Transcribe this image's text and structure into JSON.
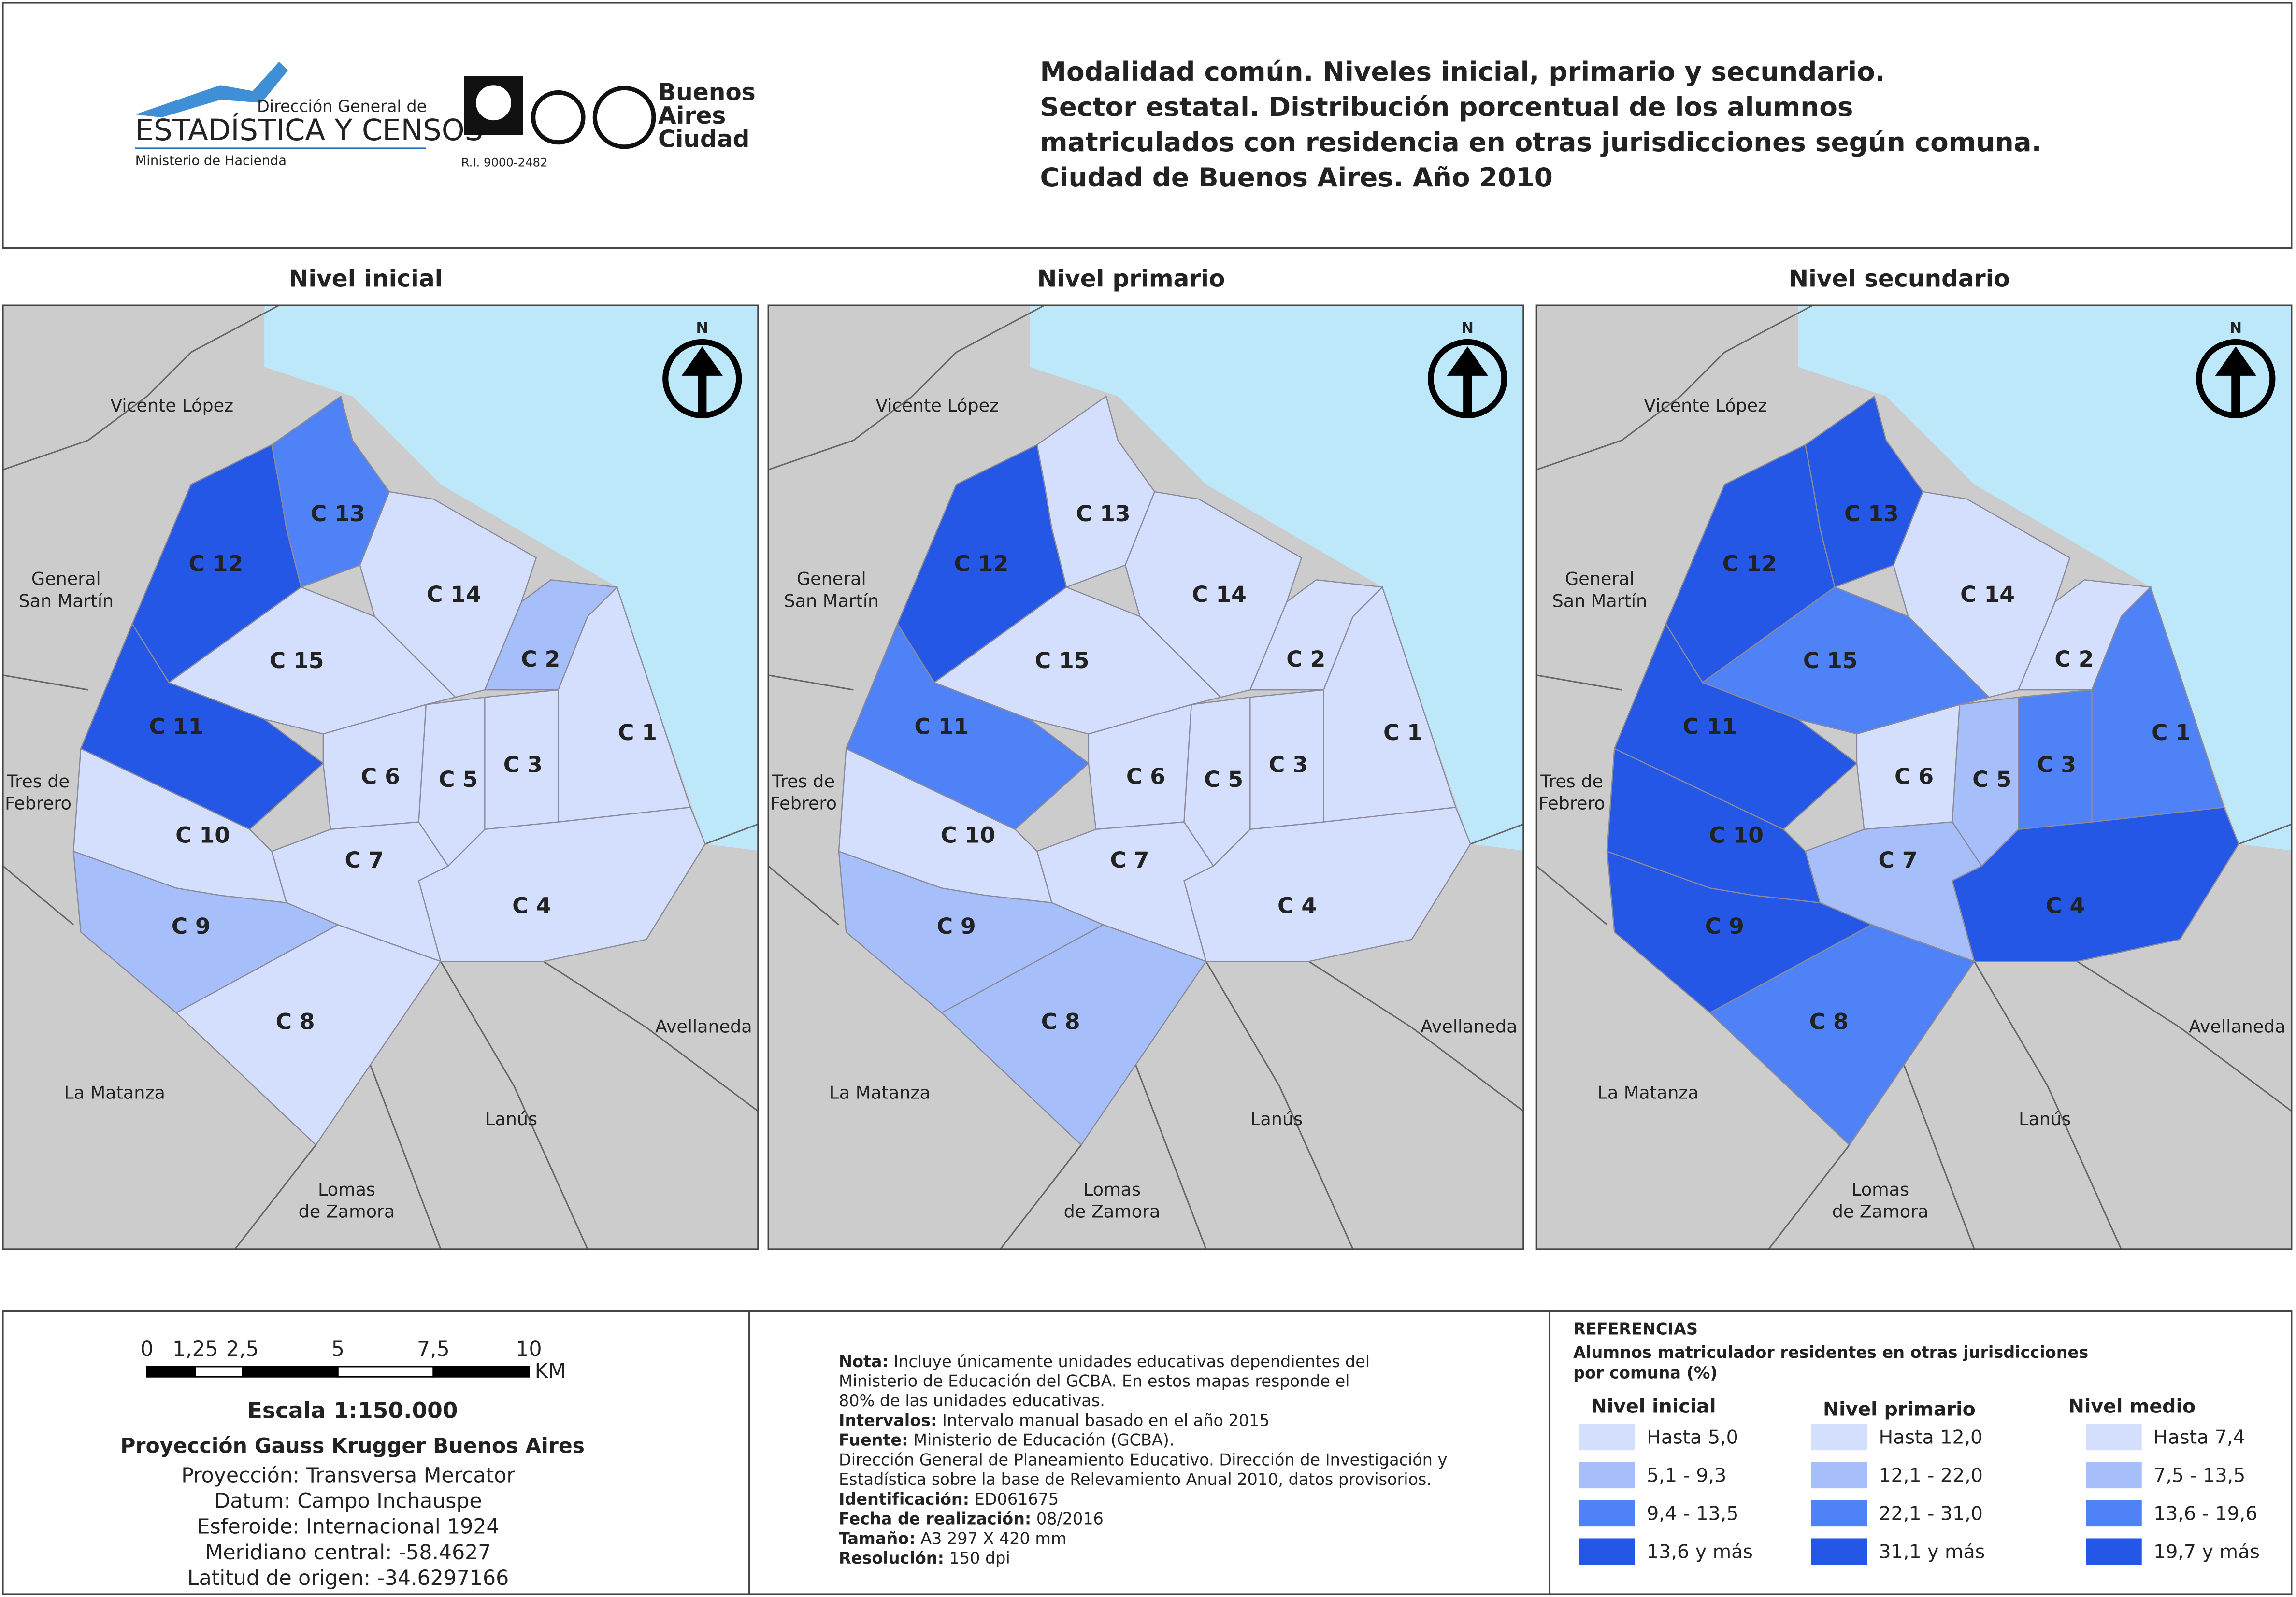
{
  "header": {
    "logo": {
      "line1": "Dirección General de",
      "line2": "ESTADÍSTICA Y CENSOS",
      "line3": "Ministerio de Hacienda",
      "cert": "R.I. 9000-2482",
      "city": [
        "Buenos",
        "Aires",
        "Ciudad"
      ]
    },
    "title": [
      "Modalidad común. Niveles inicial, primario y secundario.",
      "Sector estatal. Distribución porcentual de los alumnos",
      "matriculados con residencia en otras jurisdicciones según comuna.",
      "Ciudad de Buenos Aires. Año 2010"
    ]
  },
  "north_label": "N",
  "neighbors": [
    {
      "lines": [
        "Vicente López"
      ]
    },
    {
      "lines": [
        "General",
        "San Martín"
      ]
    },
    {
      "lines": [
        "Tres de",
        "Febrero"
      ]
    },
    {
      "lines": [
        "La Matanza"
      ]
    },
    {
      "lines": [
        "Lomas",
        "de Zamora"
      ]
    },
    {
      "lines": [
        "Lanús"
      ]
    },
    {
      "lines": [
        "Avellaneda"
      ]
    }
  ],
  "maps": [
    {
      "title": "Nivel inicial",
      "comunas": [
        {
          "label": "C 1",
          "class": 0
        },
        {
          "label": "C 2",
          "class": 1
        },
        {
          "label": "C 3",
          "class": 0
        },
        {
          "label": "C 4",
          "class": 0
        },
        {
          "label": "C 5",
          "class": 0
        },
        {
          "label": "C 6",
          "class": 0
        },
        {
          "label": "C 7",
          "class": 0
        },
        {
          "label": "C 8",
          "class": 0
        },
        {
          "label": "C 9",
          "class": 1
        },
        {
          "label": "C 10",
          "class": 0
        },
        {
          "label": "C 11",
          "class": 3
        },
        {
          "label": "C 12",
          "class": 3
        },
        {
          "label": "C 13",
          "class": 2
        },
        {
          "label": "C 14",
          "class": 0
        },
        {
          "label": "C 15",
          "class": 0
        }
      ]
    },
    {
      "title": "Nivel primario",
      "comunas": [
        {
          "label": "C 1",
          "class": 0
        },
        {
          "label": "C 2",
          "class": 0
        },
        {
          "label": "C 3",
          "class": 0
        },
        {
          "label": "C 4",
          "class": 0
        },
        {
          "label": "C 5",
          "class": 0
        },
        {
          "label": "C 6",
          "class": 0
        },
        {
          "label": "C 7",
          "class": 0
        },
        {
          "label": "C 8",
          "class": 1
        },
        {
          "label": "C 9",
          "class": 1
        },
        {
          "label": "C 10",
          "class": 0
        },
        {
          "label": "C 11",
          "class": 2
        },
        {
          "label": "C 12",
          "class": 3
        },
        {
          "label": "C 13",
          "class": 0
        },
        {
          "label": "C 14",
          "class": 0
        },
        {
          "label": "C 15",
          "class": 0
        }
      ]
    },
    {
      "title": "Nivel secundario",
      "comunas": [
        {
          "label": "C 1",
          "class": 2
        },
        {
          "label": "C 2",
          "class": 0
        },
        {
          "label": "C 3",
          "class": 2
        },
        {
          "label": "C 4",
          "class": 3
        },
        {
          "label": "C 5",
          "class": 1
        },
        {
          "label": "C 6",
          "class": 0
        },
        {
          "label": "C 7",
          "class": 1
        },
        {
          "label": "C 8",
          "class": 2
        },
        {
          "label": "C 9",
          "class": 3
        },
        {
          "label": "C 10",
          "class": 3
        },
        {
          "label": "C 11",
          "class": 3
        },
        {
          "label": "C 12",
          "class": 3
        },
        {
          "label": "C 13",
          "class": 3
        },
        {
          "label": "C 14",
          "class": 0
        },
        {
          "label": "C 15",
          "class": 2
        }
      ]
    }
  ],
  "scale": {
    "ticks": [
      "0",
      "1,25",
      "2,5",
      "5",
      "7,5",
      "10"
    ],
    "unit": "KM",
    "title": "Escala 1:150.000",
    "projection_title": "Proyección Gauss Krugger Buenos Aires",
    "lines": [
      "Proyección: Transversa Mercator",
      "Datum: Campo Inchauspe",
      "Esferoide: Internacional 1924",
      "Meridiano central: -58.4627",
      "Latitud de origen: -34.6297166"
    ]
  },
  "notes": [
    {
      "key": "Nota:",
      "text": "Incluye únicamente unidades educativas dependientes del"
    },
    {
      "text": "Ministerio de Educación del GCBA. En estos mapas responde el"
    },
    {
      "text": "80% de las unidades educativas."
    },
    {
      "key": "Intervalos:",
      "text": "Intervalo manual basado en el año 2015"
    },
    {
      "key": "Fuente:",
      "text": "Ministerio de Educación (GCBA)."
    },
    {
      "text": "Dirección General de Planeamiento Educativo. Dirección de Investigación y"
    },
    {
      "text": "Estadística sobre la base de Relevamiento Anual 2010, datos provisorios."
    },
    {
      "key": "Identificación:",
      "text": "ED061675"
    },
    {
      "key": "Fecha de realización:",
      "text": "08/2016"
    },
    {
      "key": "Tamaño:",
      "text": "A3 297 X 420 mm"
    },
    {
      "key": "Resolución:",
      "text": "150 dpi"
    }
  ],
  "legend": {
    "title": "REFERENCIAS",
    "subtitle": [
      "Alumnos matriculador residentes en otras jurisdicciones",
      "por comuna (%)"
    ],
    "colors": [
      "#d3dffc",
      "#a6bffb",
      "#4f82f6",
      "#2557e6"
    ],
    "groups": [
      {
        "title": "Nivel inicial",
        "items": [
          "Hasta 5,0",
          "5,1 - 9,3",
          "9,4 - 13,5",
          "13,6 y más"
        ]
      },
      {
        "title": "Nivel primario",
        "items": [
          "Hasta 12,0",
          "12,1 - 22,0",
          "22,1 - 31,0",
          "31,1 y más"
        ]
      },
      {
        "title": "Nivel medio",
        "items": [
          "Hasta 7,4",
          "7,5 - 13,5",
          "13,6 - 19,6",
          "19,7 y más"
        ]
      }
    ]
  }
}
